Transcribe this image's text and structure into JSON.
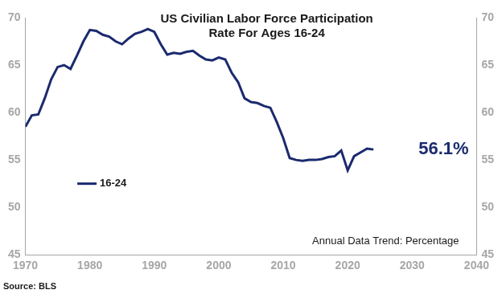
{
  "chart_data": {
    "type": "line",
    "title": "US Civilian Labor Force Participation Rate For Ages 16-24",
    "x": [
      1970,
      1971,
      1972,
      1973,
      1974,
      1975,
      1976,
      1977,
      1978,
      1979,
      1980,
      1981,
      1982,
      1983,
      1984,
      1985,
      1986,
      1987,
      1988,
      1989,
      1990,
      1991,
      1992,
      1993,
      1994,
      1995,
      1996,
      1997,
      1998,
      1999,
      2000,
      2001,
      2002,
      2003,
      2004,
      2005,
      2006,
      2007,
      2008,
      2009,
      2010,
      2011,
      2012,
      2013,
      2014,
      2015,
      2016,
      2017,
      2018,
      2019,
      2020,
      2021,
      2022,
      2023,
      2024
    ],
    "series": [
      {
        "name": "16-24",
        "color": "#1b2a6e",
        "values": [
          58.5,
          59.7,
          59.8,
          61.5,
          63.5,
          64.8,
          65.0,
          64.6,
          66.0,
          67.5,
          68.7,
          68.6,
          68.2,
          68.0,
          67.5,
          67.2,
          67.8,
          68.3,
          68.5,
          68.8,
          68.5,
          67.2,
          66.1,
          66.3,
          66.2,
          66.4,
          66.5,
          66.0,
          65.6,
          65.5,
          65.8,
          65.6,
          64.2,
          63.2,
          61.5,
          61.1,
          61.0,
          60.7,
          60.5,
          59.0,
          57.3,
          55.2,
          55.0,
          54.9,
          55.0,
          55.0,
          55.1,
          55.3,
          55.4,
          56.0,
          53.9,
          55.4,
          55.8,
          56.2,
          56.1
        ]
      }
    ],
    "xlim": [
      1970,
      2040
    ],
    "xticks": [
      1970,
      1980,
      1990,
      2000,
      2010,
      2020,
      2030,
      2040
    ],
    "ylim": [
      45,
      70
    ],
    "yticks": [
      45,
      50,
      55,
      60,
      65,
      70
    ],
    "y2lim": [
      45,
      70
    ],
    "y2ticks": [
      45,
      50,
      55,
      60,
      65,
      70
    ],
    "grid": false,
    "legend": "left",
    "annotations": [
      "56.1%",
      "Annual Data Trend: Percentage"
    ],
    "source": "Source: BLS"
  }
}
